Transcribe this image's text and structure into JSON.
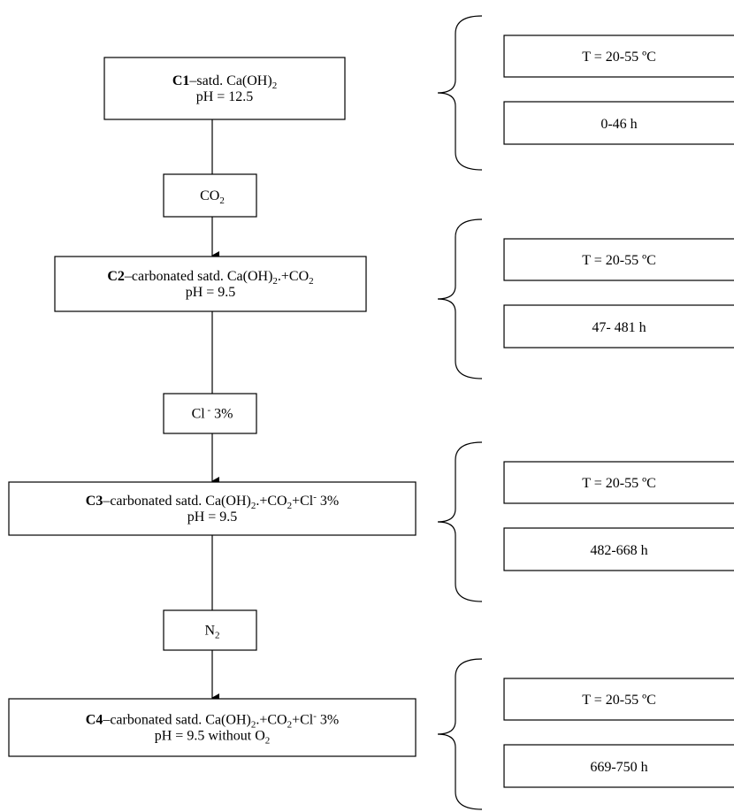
{
  "nodes": [
    {
      "lines": [
        [
          {
            "text": "C1",
            "fmt": "b"
          },
          {
            "text": "–satd. Ca(OH)"
          },
          {
            "text": "2",
            "fmt": "sub"
          }
        ],
        [
          {
            "text": "pH = 12.5"
          }
        ]
      ]
    },
    {
      "lines": [
        [
          {
            "text": "C2",
            "fmt": "b"
          },
          {
            "text": "–carbonated satd. Ca(OH)"
          },
          {
            "text": "2",
            "fmt": "sub"
          },
          {
            "text": ".+CO"
          },
          {
            "text": "2",
            "fmt": "sub"
          }
        ],
        [
          {
            "text": "pH = 9.5"
          }
        ]
      ]
    },
    {
      "lines": [
        [
          {
            "text": "C3",
            "fmt": "b"
          },
          {
            "text": "–carbonated satd. Ca(OH)"
          },
          {
            "text": "2",
            "fmt": "sub"
          },
          {
            "text": ".+CO"
          },
          {
            "text": "2",
            "fmt": "sub"
          },
          {
            "text": "+Cl"
          },
          {
            "text": "-",
            "fmt": "sup"
          },
          {
            "text": " 3%"
          }
        ],
        [
          {
            "text": "pH = 9.5"
          }
        ]
      ]
    },
    {
      "lines": [
        [
          {
            "text": "C4",
            "fmt": "b"
          },
          {
            "text": "–carbonated satd. Ca(OH)"
          },
          {
            "text": "2",
            "fmt": "sub"
          },
          {
            "text": ".+CO"
          },
          {
            "text": "2",
            "fmt": "sub"
          },
          {
            "text": "+Cl"
          },
          {
            "text": "-",
            "fmt": "sup"
          },
          {
            "text": " 3%"
          }
        ],
        [
          {
            "text": "pH = 9.5 without O"
          },
          {
            "text": "2",
            "fmt": "sub"
          }
        ]
      ]
    }
  ],
  "reagents": [
    [
      {
        "text": "CO"
      },
      {
        "text": "2",
        "fmt": "sub"
      }
    ],
    [
      {
        "text": "Cl"
      },
      {
        "text": " -",
        "fmt": "sup"
      },
      {
        "text": " 3%"
      }
    ],
    [
      {
        "text": "N"
      },
      {
        "text": "2",
        "fmt": "sub"
      }
    ]
  ],
  "conditions": [
    {
      "temperature": "T = 20-55 ºC",
      "time": "0-46 h"
    },
    {
      "temperature": "T = 20-55 ºC",
      "time": "47- 481 h"
    },
    {
      "temperature": "T = 20-55 ºC",
      "time": "482-668 h"
    },
    {
      "temperature": "T = 20-55 ºC",
      "time": "669-750 h"
    }
  ]
}
